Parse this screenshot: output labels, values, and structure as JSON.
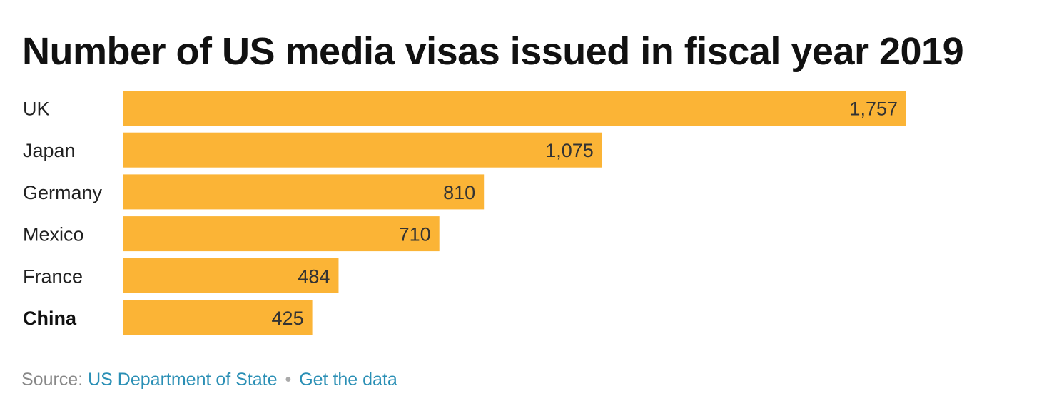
{
  "chart_data": {
    "type": "bar",
    "orientation": "horizontal",
    "title": "Number of US media visas issued in fiscal year 2019",
    "categories": [
      "UK",
      "Japan",
      "Germany",
      "Mexico",
      "France",
      "China"
    ],
    "values": [
      1757,
      1075,
      810,
      710,
      484,
      425
    ],
    "value_labels": [
      "1,757",
      "1,075",
      "810",
      "710",
      "484",
      "425"
    ],
    "highlighted_category": "China",
    "bar_color": "#fbb436",
    "grid": false,
    "xlim": [
      0,
      1757
    ]
  },
  "footer": {
    "source_prefix": "Source:",
    "source_link": "US Department of State",
    "separator": "•",
    "data_link": "Get the data"
  },
  "colors": {
    "link": "#2a8fb5",
    "muted": "#888888"
  }
}
